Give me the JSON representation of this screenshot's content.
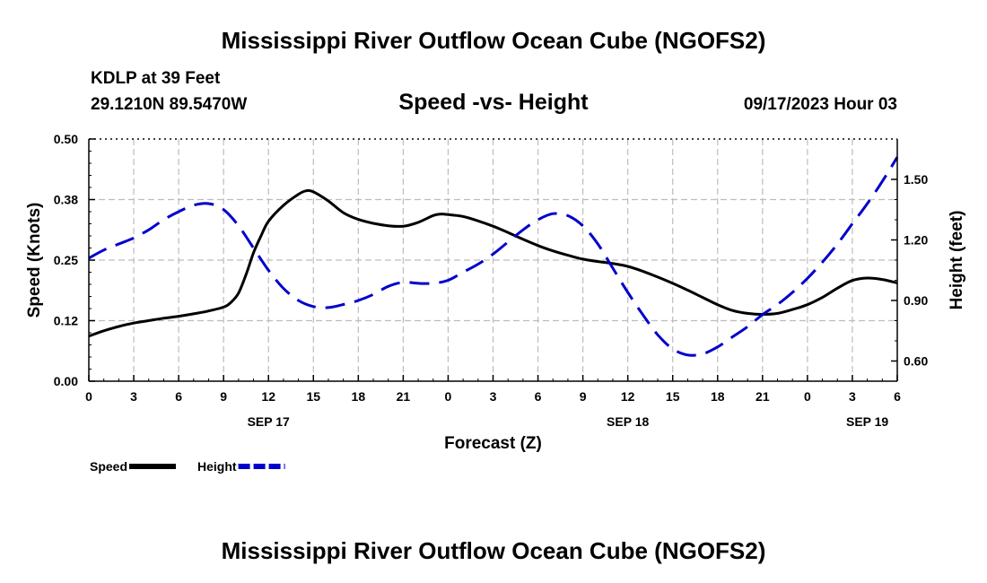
{
  "page": {
    "title": "Mississippi River Outflow Ocean Cube (NGOFS2)",
    "station": "KDLP at 39 Feet",
    "coordinates": "29.1210N  89.5470W",
    "subtitle": "Speed -vs- Height",
    "datetime": "09/17/2023 Hour 03",
    "footer_title": "Mississippi River Outflow Ocean Cube (NGOFS2)"
  },
  "chart_data": {
    "type": "line",
    "title": "Speed -vs- Height",
    "xlabel": "Forecast (Z)",
    "ylabel": "Speed (Knots)",
    "y2label": "Height (feet)",
    "x_unit": "hours from 09/16 00Z",
    "xlim": [
      24,
      78
    ],
    "ylim": [
      0,
      0.5
    ],
    "y2lim": [
      0.5,
      1.7
    ],
    "grid": true,
    "legend_position": "bottom-left",
    "x_ticks": [
      {
        "x": 24,
        "label": "0"
      },
      {
        "x": 27,
        "label": "3"
      },
      {
        "x": 30,
        "label": "6"
      },
      {
        "x": 33,
        "label": "9"
      },
      {
        "x": 36,
        "label": "12"
      },
      {
        "x": 39,
        "label": "15"
      },
      {
        "x": 42,
        "label": "18"
      },
      {
        "x": 45,
        "label": "21"
      },
      {
        "x": 48,
        "label": "0"
      },
      {
        "x": 51,
        "label": "3"
      },
      {
        "x": 54,
        "label": "6"
      },
      {
        "x": 57,
        "label": "9"
      },
      {
        "x": 60,
        "label": "12"
      },
      {
        "x": 63,
        "label": "15"
      },
      {
        "x": 66,
        "label": "18"
      },
      {
        "x": 69,
        "label": "21"
      },
      {
        "x": 72,
        "label": "0"
      },
      {
        "x": 75,
        "label": "3"
      },
      {
        "x": 78,
        "label": "6"
      }
    ],
    "day_labels": [
      {
        "x": 36,
        "label": "SEP 17"
      },
      {
        "x": 60,
        "label": "SEP 18"
      },
      {
        "x": 76,
        "label": "SEP 19"
      }
    ],
    "y_ticks": [
      {
        "value": 0.0,
        "label": "0.00"
      },
      {
        "value": 0.125,
        "label": "0.12"
      },
      {
        "value": 0.25,
        "label": "0.25"
      },
      {
        "value": 0.375,
        "label": "0.38"
      },
      {
        "value": 0.5,
        "label": "0.50"
      }
    ],
    "y2_ticks": [
      {
        "value": 0.6,
        "label": "0.60"
      },
      {
        "value": 0.9,
        "label": "0.90"
      },
      {
        "value": 1.2,
        "label": "1.20"
      },
      {
        "value": 1.5,
        "label": "1.50"
      }
    ],
    "series": [
      {
        "name": "Speed",
        "axis": "left",
        "color": "#000000",
        "dash": "solid",
        "x": [
          24,
          25,
          26,
          27,
          28,
          29,
          30,
          31,
          32,
          33,
          33.5,
          34,
          34.5,
          35,
          35.5,
          36,
          37,
          38,
          38.5,
          39,
          40,
          41,
          42,
          43,
          44,
          45,
          46,
          47,
          47.5,
          48,
          49,
          50,
          51,
          52,
          53,
          54,
          55,
          56,
          57,
          58,
          59,
          60,
          61,
          62,
          63,
          64,
          65,
          66,
          67,
          68,
          69,
          70,
          71,
          72,
          73,
          74,
          75,
          76,
          77,
          78
        ],
        "y": [
          0.093,
          0.104,
          0.113,
          0.12,
          0.125,
          0.13,
          0.134,
          0.139,
          0.145,
          0.153,
          0.163,
          0.182,
          0.22,
          0.265,
          0.3,
          0.33,
          0.363,
          0.386,
          0.393,
          0.391,
          0.372,
          0.348,
          0.334,
          0.326,
          0.321,
          0.32,
          0.328,
          0.342,
          0.345,
          0.344,
          0.34,
          0.331,
          0.32,
          0.307,
          0.293,
          0.28,
          0.269,
          0.26,
          0.252,
          0.247,
          0.243,
          0.237,
          0.227,
          0.215,
          0.202,
          0.188,
          0.173,
          0.158,
          0.146,
          0.14,
          0.138,
          0.14,
          0.148,
          0.158,
          0.173,
          0.192,
          0.208,
          0.213,
          0.21,
          0.203
        ]
      },
      {
        "name": "Height",
        "axis": "right",
        "color": "#0000cc",
        "dash": "dashed",
        "x": [
          24,
          25,
          26,
          27,
          28,
          29,
          30,
          31,
          32,
          33,
          34,
          35,
          36,
          37,
          38,
          39,
          40,
          41,
          42,
          43,
          44,
          45,
          46,
          47,
          48,
          49,
          50,
          51,
          52,
          53,
          54,
          55,
          56,
          57,
          58,
          59,
          60,
          61,
          62,
          63,
          64,
          65,
          66,
          67,
          68,
          69,
          70,
          71,
          72,
          73,
          74,
          75,
          76,
          77,
          78
        ],
        "y": [
          1.11,
          1.15,
          1.18,
          1.21,
          1.25,
          1.3,
          1.34,
          1.372,
          1.38,
          1.35,
          1.27,
          1.16,
          1.05,
          0.96,
          0.9,
          0.87,
          0.865,
          0.88,
          0.9,
          0.93,
          0.97,
          0.99,
          0.985,
          0.985,
          1.0,
          1.04,
          1.08,
          1.13,
          1.19,
          1.25,
          1.3,
          1.33,
          1.32,
          1.27,
          1.18,
          1.06,
          0.94,
          0.83,
          0.73,
          0.66,
          0.63,
          0.635,
          0.67,
          0.72,
          0.77,
          0.83,
          0.88,
          0.94,
          1.01,
          1.09,
          1.18,
          1.28,
          1.38,
          1.49,
          1.61
        ]
      }
    ],
    "legend": [
      {
        "label": "Speed",
        "color": "#000000",
        "dash": "solid"
      },
      {
        "label": "Height",
        "color": "#0000cc",
        "dash": "dashed"
      }
    ]
  }
}
